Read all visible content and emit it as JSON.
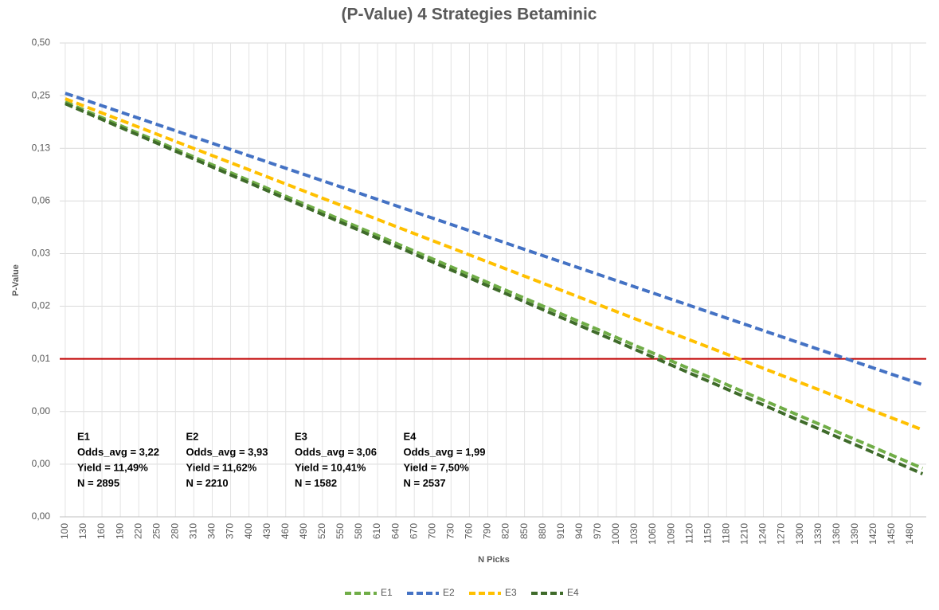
{
  "chart_data": {
    "type": "line",
    "title": "(P-Value) 4 Strategies Betaminic",
    "xlabel": "N Picks",
    "ylabel": "P-Value",
    "x": [
      100,
      500,
      1000,
      1500
    ],
    "series": [
      {
        "name": "E1",
        "color": "#70ad47",
        "values": [
          0.23,
          0.058,
          0.01036,
          0.00185
        ]
      },
      {
        "name": "E2",
        "color": "#4472c4",
        "values": [
          0.258,
          0.0862,
          0.0219,
          0.00556
        ]
      },
      {
        "name": "E3",
        "color": "#ffc000",
        "values": [
          0.24,
          0.069,
          0.01457,
          0.00307
        ]
      },
      {
        "name": "E4",
        "color": "#3f6b2a",
        "values": [
          0.225,
          0.0561,
          0.00984,
          0.00172
        ]
      }
    ],
    "xlim": [
      91,
      1506
    ],
    "xticks": [
      100,
      130,
      160,
      190,
      220,
      250,
      280,
      310,
      340,
      370,
      400,
      430,
      460,
      490,
      520,
      550,
      580,
      610,
      640,
      670,
      700,
      730,
      760,
      790,
      820,
      850,
      880,
      910,
      940,
      970,
      1000,
      1030,
      1060,
      1090,
      1120,
      1150,
      1180,
      1210,
      1240,
      1270,
      1300,
      1330,
      1360,
      1390,
      1420,
      1450,
      1480
    ],
    "ylim": [
      0.0009765625,
      0.5
    ],
    "yscale": "log",
    "yticks": [
      {
        "value": 0.5,
        "label": "0,50"
      },
      {
        "value": 0.25,
        "label": "0,25"
      },
      {
        "value": 0.125,
        "label": "0,13"
      },
      {
        "value": 0.0625,
        "label": "0,06"
      },
      {
        "value": 0.03125,
        "label": "0,03"
      },
      {
        "value": 0.015625,
        "label": "0,02"
      },
      {
        "value": 0.0078125,
        "label": "0,01"
      },
      {
        "value": 0.00390625,
        "label": "0,00"
      },
      {
        "value": 0.001953125,
        "label": "0,00"
      },
      {
        "value": 0.0009765625,
        "label": "0,00"
      }
    ],
    "reference_line": {
      "value": 0.0078125,
      "color": "#c00000"
    },
    "grid": true,
    "legend": "bottom",
    "annotations": [
      {
        "lines": [
          "E1",
          "Odds_avg = 3,22",
          "Yield = 11,49%",
          "N = 2895"
        ]
      },
      {
        "lines": [
          "E2",
          "Odds_avg = 3,93",
          "Yield = 11,62%",
          "N = 2210"
        ]
      },
      {
        "lines": [
          "E3",
          "Odds_avg = 3,06",
          "Yield = 10,41%",
          "N = 1582"
        ]
      },
      {
        "lines": [
          "E4",
          "Odds_avg = 1,99",
          "Yield = 7,50%",
          "N = 2537"
        ]
      }
    ]
  }
}
